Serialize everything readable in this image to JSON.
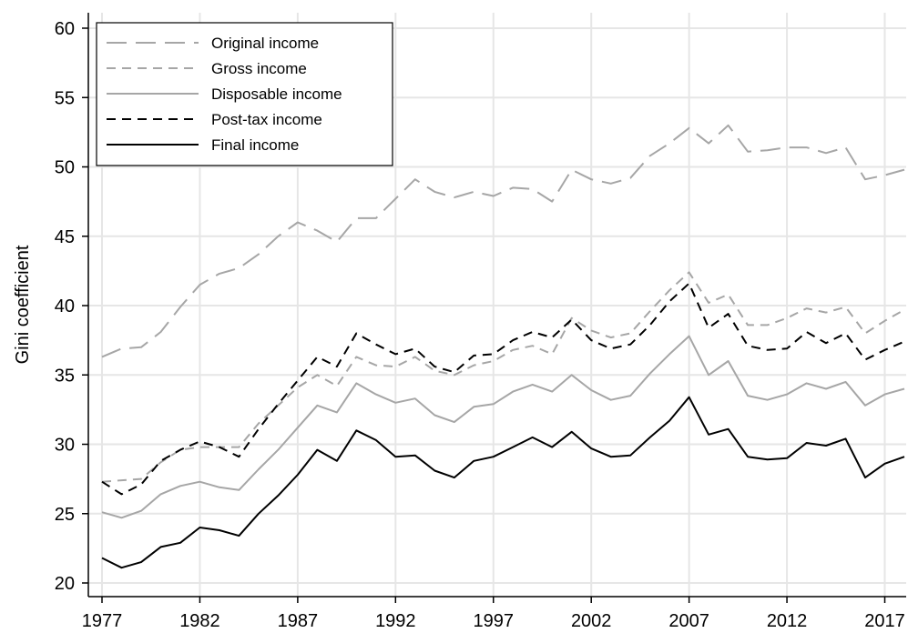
{
  "chart_data": {
    "type": "line",
    "title": "",
    "xlabel": "",
    "ylabel": "Gini coefficient",
    "xlim": [
      1977,
      2018
    ],
    "ylim": [
      20,
      60
    ],
    "x_ticks": [
      1977,
      1982,
      1987,
      1992,
      1997,
      2002,
      2007,
      2012,
      2017
    ],
    "y_ticks": [
      20,
      25,
      30,
      35,
      40,
      45,
      50,
      55,
      60
    ],
    "grid": "on",
    "legend_position": "top-left",
    "x": [
      1977,
      1978,
      1979,
      1980,
      1981,
      1982,
      1983,
      1984,
      1985,
      1986,
      1987,
      1988,
      1989,
      1990,
      1991,
      1992,
      1993,
      1994,
      1995,
      1996,
      1997,
      1998,
      1999,
      2000,
      2001,
      2002,
      2003,
      2004,
      2005,
      2006,
      2007,
      2008,
      2009,
      2010,
      2011,
      2012,
      2013,
      2014,
      2015,
      2016,
      2017,
      2018
    ],
    "series": [
      {
        "name": "Original income",
        "color": "#a6a6a6",
        "dash": "long-dash",
        "values": [
          36.3,
          36.9,
          37.0,
          38.1,
          39.9,
          41.5,
          42.3,
          42.7,
          43.7,
          45.0,
          46.0,
          45.4,
          44.6,
          46.3,
          46.3,
          47.7,
          49.1,
          48.2,
          47.8,
          48.2,
          47.9,
          48.5,
          48.4,
          47.5,
          49.8,
          49.1,
          48.8,
          49.2,
          50.8,
          51.7,
          52.8,
          51.7,
          53.0,
          51.1,
          51.2,
          51.4,
          51.4,
          51.0,
          51.4,
          49.1,
          49.4,
          49.8
        ]
      },
      {
        "name": "Gross income",
        "color": "#a6a6a6",
        "dash": "short-dash",
        "values": [
          27.3,
          27.4,
          27.5,
          28.7,
          29.6,
          29.8,
          29.8,
          29.8,
          31.5,
          32.8,
          34.1,
          35.0,
          34.2,
          36.3,
          35.7,
          35.6,
          36.3,
          35.3,
          35.0,
          35.7,
          36.0,
          36.8,
          37.1,
          36.5,
          39.1,
          38.2,
          37.7,
          38.0,
          39.6,
          41.1,
          42.4,
          40.2,
          40.8,
          38.6,
          38.6,
          39.1,
          39.8,
          39.5,
          39.9,
          38.0,
          38.9,
          39.7
        ]
      },
      {
        "name": "Disposable income",
        "color": "#a6a6a6",
        "dash": "solid",
        "values": [
          25.1,
          24.7,
          25.2,
          26.4,
          27.0,
          27.3,
          26.9,
          26.7,
          28.2,
          29.6,
          31.2,
          32.8,
          32.3,
          34.4,
          33.6,
          33.0,
          33.3,
          32.1,
          31.6,
          32.7,
          32.9,
          33.8,
          34.3,
          33.8,
          35.0,
          33.9,
          33.2,
          33.5,
          35.1,
          36.5,
          37.8,
          35.0,
          36.0,
          33.5,
          33.2,
          33.6,
          34.4,
          34.0,
          34.5,
          32.8,
          33.6,
          34.0
        ]
      },
      {
        "name": "Post-tax income",
        "color": "#000000",
        "dash": "short-dash",
        "values": [
          27.3,
          26.4,
          27.1,
          28.8,
          29.6,
          30.2,
          29.8,
          29.1,
          31.1,
          32.9,
          34.6,
          36.3,
          35.6,
          38.0,
          37.2,
          36.5,
          36.9,
          35.6,
          35.2,
          36.4,
          36.5,
          37.5,
          38.1,
          37.7,
          39.0,
          37.5,
          36.9,
          37.2,
          38.6,
          40.3,
          41.6,
          38.4,
          39.4,
          37.1,
          36.8,
          36.9,
          38.1,
          37.3,
          38.0,
          36.1,
          36.8,
          37.4
        ]
      },
      {
        "name": "Final income",
        "color": "#000000",
        "dash": "solid",
        "values": [
          21.8,
          21.1,
          21.5,
          22.6,
          22.9,
          24.0,
          23.8,
          23.4,
          25.0,
          26.3,
          27.8,
          29.6,
          28.8,
          31.0,
          30.3,
          29.1,
          29.2,
          28.1,
          27.6,
          28.8,
          29.1,
          29.8,
          30.5,
          29.8,
          30.9,
          29.7,
          29.1,
          29.2,
          30.5,
          31.7,
          33.4,
          30.7,
          31.1,
          29.1,
          28.9,
          29.0,
          30.1,
          29.9,
          30.4,
          27.6,
          28.6,
          29.1
        ]
      }
    ]
  }
}
